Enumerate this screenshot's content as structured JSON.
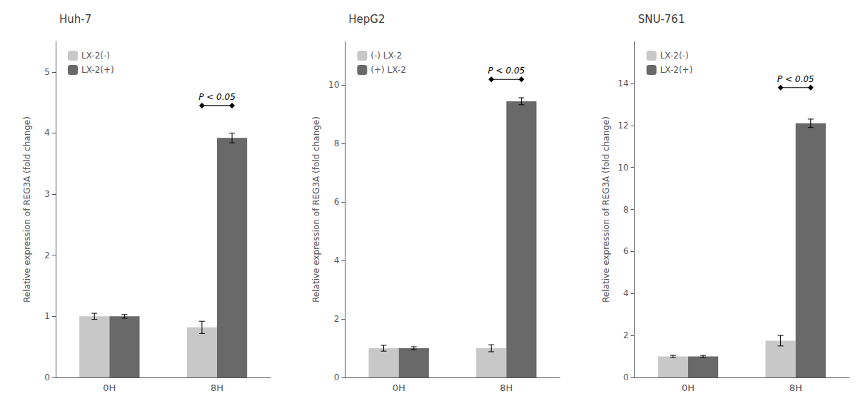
{
  "chart_data": [
    {
      "type": "bar",
      "title": "Huh-7",
      "ylabel": "Relative expression of REG3A (fold change)",
      "categories": [
        "0H",
        "8H"
      ],
      "series": [
        {
          "name": "LX-2(-)",
          "color": "#c8c8c8",
          "values": [
            1.0,
            0.82
          ],
          "errors": [
            0.05,
            0.1
          ]
        },
        {
          "name": "LX-2(+)",
          "color": "#696969",
          "values": [
            1.0,
            3.92
          ],
          "errors": [
            0.03,
            0.08
          ]
        }
      ],
      "ylim": [
        0,
        5.5
      ],
      "yticks": [
        0,
        1,
        2,
        3,
        4,
        5
      ],
      "annotations": [
        {
          "text": "P < 0.05",
          "x": "8H",
          "y": 4.45
        }
      ],
      "legend": "upper left",
      "grid": false
    },
    {
      "type": "bar",
      "title": "HepG2",
      "ylabel": "Relative expression of REG3A (fold change)",
      "categories": [
        "0H",
        "8H"
      ],
      "series": [
        {
          "name": "(-) LX-2",
          "color": "#c8c8c8",
          "values": [
            1.0,
            1.0
          ],
          "errors": [
            0.1,
            0.12
          ]
        },
        {
          "name": "(+) LX-2",
          "color": "#696969",
          "values": [
            1.0,
            9.45
          ],
          "errors": [
            0.05,
            0.12
          ]
        }
      ],
      "ylim": [
        0,
        11.5
      ],
      "yticks": [
        0,
        2,
        4,
        6,
        8,
        10
      ],
      "annotations": [
        {
          "text": "P < 0.05",
          "x": "8H",
          "y": 10.2
        }
      ],
      "legend": "upper left",
      "grid": false
    },
    {
      "type": "bar",
      "title": "SNU-761",
      "ylabel": "Relative expression of REG3A (fold change)",
      "categories": [
        "0H",
        "8H"
      ],
      "series": [
        {
          "name": "LX-2(-)",
          "color": "#c8c8c8",
          "values": [
            1.0,
            1.75
          ],
          "errors": [
            0.05,
            0.25
          ]
        },
        {
          "name": "LX-2(+)",
          "color": "#696969",
          "values": [
            1.0,
            12.1
          ],
          "errors": [
            0.05,
            0.2
          ]
        }
      ],
      "ylim": [
        0,
        16.0
      ],
      "yticks": [
        0,
        2,
        4,
        6,
        8,
        10,
        12,
        14
      ],
      "annotations": [
        {
          "text": "P < 0.05",
          "x": "8H",
          "y": 13.8
        }
      ],
      "legend": "upper left",
      "grid": false
    }
  ]
}
